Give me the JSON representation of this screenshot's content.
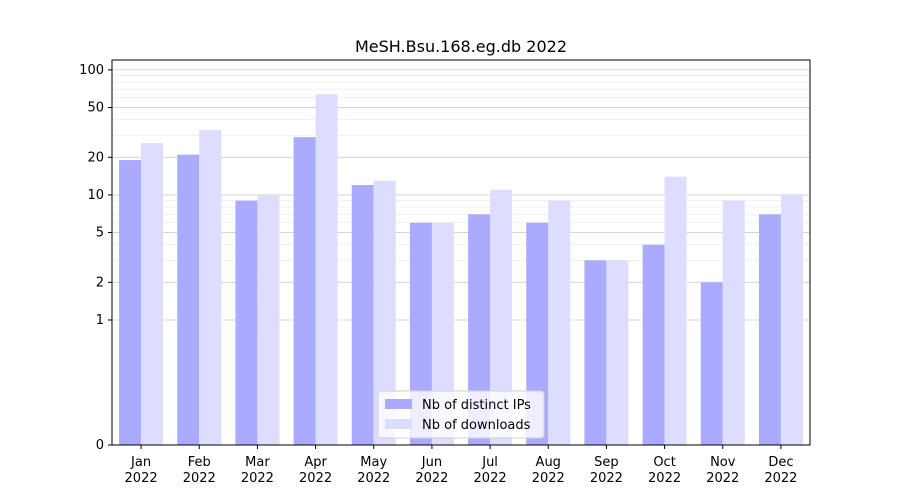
{
  "chart_data": {
    "type": "bar",
    "title": "MeSH.Bsu.168.eg.db 2022",
    "xlabel": "",
    "ylabel": "",
    "yscale": "symlog",
    "ylim": [
      0,
      120
    ],
    "yticks": [
      0,
      1,
      2,
      5,
      10,
      20,
      50,
      100
    ],
    "grid": true,
    "legend_position": "bottom-center",
    "categories": [
      "Jan\n2022",
      "Feb\n2022",
      "Mar\n2022",
      "Apr\n2022",
      "May\n2022",
      "Jun\n2022",
      "Jul\n2022",
      "Aug\n2022",
      "Sep\n2022",
      "Oct\n2022",
      "Nov\n2022",
      "Dec\n2022"
    ],
    "series": [
      {
        "name": "Nb of distinct IPs",
        "color": "#aaaaff",
        "values": [
          19,
          21,
          9,
          29,
          12,
          6,
          7,
          6,
          3,
          4,
          2,
          7
        ]
      },
      {
        "name": "Nb of downloads",
        "color": "#ddddff",
        "values": [
          26,
          33,
          10,
          64,
          13,
          6,
          11,
          9,
          3,
          14,
          9,
          10
        ]
      }
    ]
  }
}
